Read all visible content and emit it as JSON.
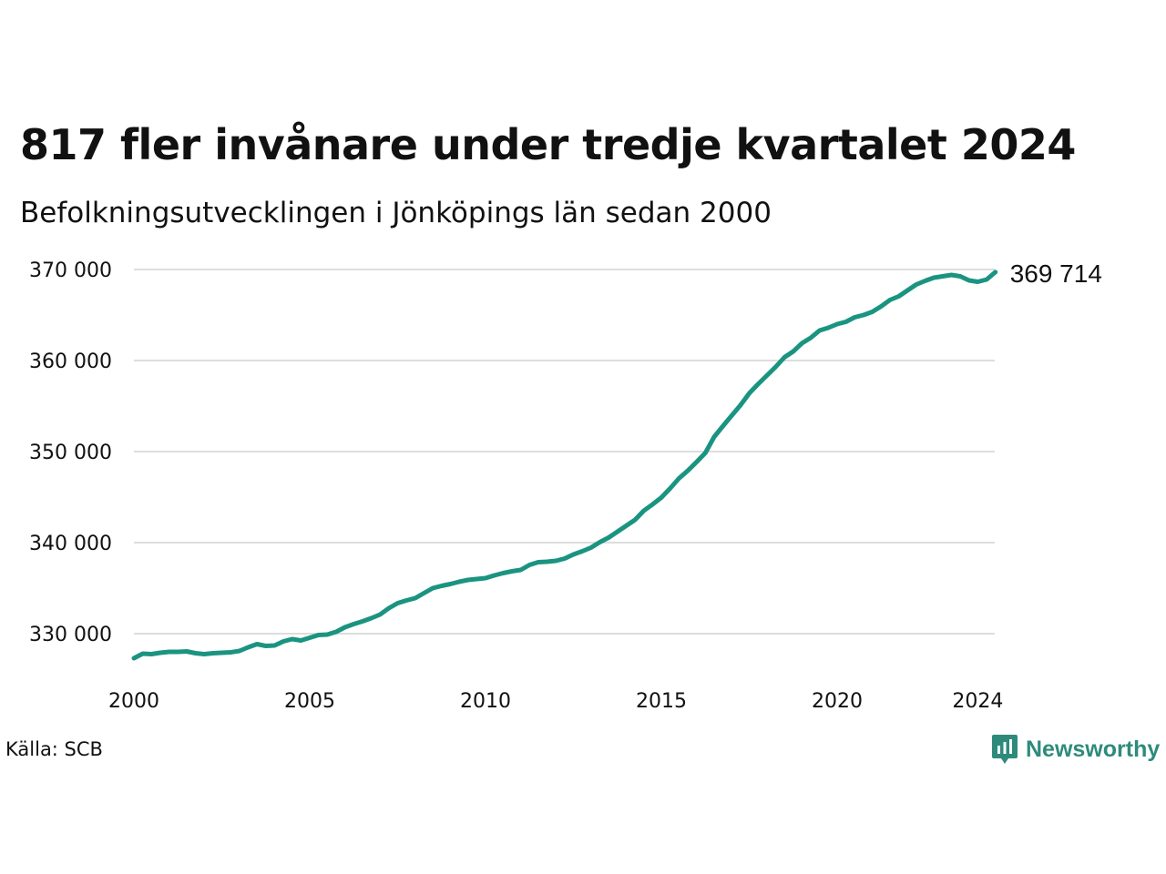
{
  "header": {
    "title": "817 fler invånare under tredje kvartalet 2024",
    "subtitle": "Befolkningsutvecklingen i Jönköpings län sedan 2000"
  },
  "footer": {
    "source": "Källa: SCB",
    "brand": "Newsworthy",
    "brand_icon": "newsworthy-logo-icon"
  },
  "colors": {
    "line": "#1a9481",
    "grid": "#dddddd",
    "brand": "#2e8b7c"
  },
  "chart_data": {
    "type": "line",
    "title": "817 fler invånare under tredje kvartalet 2024",
    "subtitle": "Befolkningsutvecklingen i Jönköpings län sedan 2000",
    "xlabel": "",
    "ylabel": "",
    "grid": "horizontal",
    "legend": "none",
    "xlim": [
      2000,
      2024.5
    ],
    "ylim": [
      325000,
      370000
    ],
    "x_ticks": [
      {
        "value": 2000,
        "label": "2000"
      },
      {
        "value": 2005,
        "label": "2005"
      },
      {
        "value": 2010,
        "label": "2010"
      },
      {
        "value": 2015,
        "label": "2015"
      },
      {
        "value": 2020,
        "label": "2020"
      },
      {
        "value": 2024,
        "label": "2024"
      }
    ],
    "y_ticks": [
      {
        "value": 330000,
        "label": "330 000"
      },
      {
        "value": 340000,
        "label": "340 000"
      },
      {
        "value": 350000,
        "label": "350 000"
      },
      {
        "value": 360000,
        "label": "360 000"
      },
      {
        "value": 370000,
        "label": "370 000"
      }
    ],
    "last_label": "369 714",
    "series": [
      {
        "x": [
          "2000 Q1",
          "2000 Q2",
          "2000 Q3",
          "2000 Q4",
          "2001 Q1",
          "2001 Q2",
          "2001 Q3",
          "2001 Q4",
          "2002 Q1",
          "2002 Q2",
          "2002 Q3",
          "2002 Q4",
          "2003 Q1",
          "2003 Q2",
          "2003 Q3",
          "2003 Q4",
          "2004 Q1",
          "2004 Q2",
          "2004 Q3",
          "2004 Q4",
          "2005 Q1",
          "2005 Q2",
          "2005 Q3",
          "2005 Q4",
          "2006 Q1",
          "2006 Q2",
          "2006 Q3",
          "2006 Q4",
          "2007 Q1",
          "2007 Q2",
          "2007 Q3",
          "2007 Q4",
          "2008 Q1",
          "2008 Q2",
          "2008 Q3",
          "2008 Q4",
          "2009 Q1",
          "2009 Q2",
          "2009 Q3",
          "2009 Q4",
          "2010 Q1",
          "2010 Q2",
          "2010 Q3",
          "2010 Q4",
          "2011 Q1",
          "2011 Q2",
          "2011 Q3",
          "2011 Q4",
          "2012 Q1",
          "2012 Q2",
          "2012 Q3",
          "2012 Q4",
          "2013 Q1",
          "2013 Q2",
          "2013 Q3",
          "2013 Q4",
          "2014 Q1",
          "2014 Q2",
          "2014 Q3",
          "2014 Q4",
          "2015 Q1",
          "2015 Q2",
          "2015 Q3",
          "2015 Q4",
          "2016 Q1",
          "2016 Q2",
          "2016 Q3",
          "2016 Q4",
          "2017 Q1",
          "2017 Q2",
          "2017 Q3",
          "2017 Q4",
          "2018 Q1",
          "2018 Q2",
          "2018 Q3",
          "2018 Q4",
          "2019 Q1",
          "2019 Q2",
          "2019 Q3",
          "2019 Q4",
          "2020 Q1",
          "2020 Q2",
          "2020 Q3",
          "2020 Q4",
          "2021 Q1",
          "2021 Q2",
          "2021 Q3",
          "2021 Q4",
          "2022 Q1",
          "2022 Q2",
          "2022 Q3",
          "2022 Q4",
          "2023 Q1",
          "2023 Q2",
          "2023 Q3",
          "2023 Q4",
          "2024 Q1",
          "2024 Q2",
          "2024 Q3"
        ],
        "values": [
          327300,
          327800,
          327750,
          327900,
          328000,
          328000,
          328050,
          327850,
          327750,
          327850,
          327900,
          327950,
          328100,
          328500,
          328850,
          328650,
          328700,
          329150,
          329400,
          329250,
          329550,
          329850,
          329900,
          330200,
          330700,
          331050,
          331350,
          331700,
          332100,
          332800,
          333350,
          333650,
          333900,
          334450,
          335000,
          335250,
          335450,
          335700,
          335900,
          336000,
          336100,
          336400,
          336650,
          336850,
          337000,
          337550,
          337850,
          337900,
          338000,
          338250,
          338700,
          339050,
          339450,
          340050,
          340550,
          341200,
          341850,
          342500,
          343500,
          344200,
          344950,
          345950,
          347050,
          347900,
          348850,
          349850,
          351600,
          352800,
          353950,
          355100,
          356400,
          357400,
          358350,
          359300,
          360350,
          361000,
          361900,
          362500,
          363300,
          363600,
          364000,
          364250,
          364750,
          365000,
          365350,
          365950,
          366650,
          367050,
          367700,
          368350,
          368750,
          369100,
          369250,
          369400,
          369250,
          368800,
          368650,
          368900,
          369714
        ]
      }
    ]
  }
}
